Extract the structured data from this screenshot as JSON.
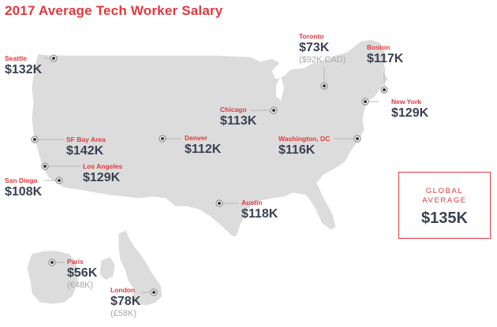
{
  "title": "2017 Average Tech Worker Salary",
  "colors": {
    "accent": "#e0383e",
    "value": "#3a4150",
    "land": "#dcdcdc",
    "muted": "#a9a9a9"
  },
  "global": {
    "line1": "GLOBAL",
    "line2": "AVERAGE",
    "value": "$135K"
  },
  "cities": {
    "seattle": {
      "name": "Seattle",
      "value": "$132K"
    },
    "sfbay": {
      "name": "SF Bay Area",
      "value": "$142K"
    },
    "la": {
      "name": "Los Angeles",
      "value": "$129K"
    },
    "sandiego": {
      "name": "San Diego",
      "value": "$108K"
    },
    "denver": {
      "name": "Denver",
      "value": "$112K"
    },
    "austin": {
      "name": "Austin",
      "value": "$118K"
    },
    "chicago": {
      "name": "Chicago",
      "value": "$113K"
    },
    "toronto": {
      "name": "Toronto",
      "value": "$73K",
      "local": "($92K CAD)"
    },
    "boston": {
      "name": "Boston",
      "value": "$117K"
    },
    "newyork": {
      "name": "New York",
      "value": "$129K"
    },
    "washington": {
      "name": "Washington, DC",
      "value": "$116K"
    },
    "paris": {
      "name": "Paris",
      "value": "$56K",
      "local": "(€48K)"
    },
    "london": {
      "name": "London",
      "value": "$78K",
      "local": "(£58K)"
    }
  }
}
